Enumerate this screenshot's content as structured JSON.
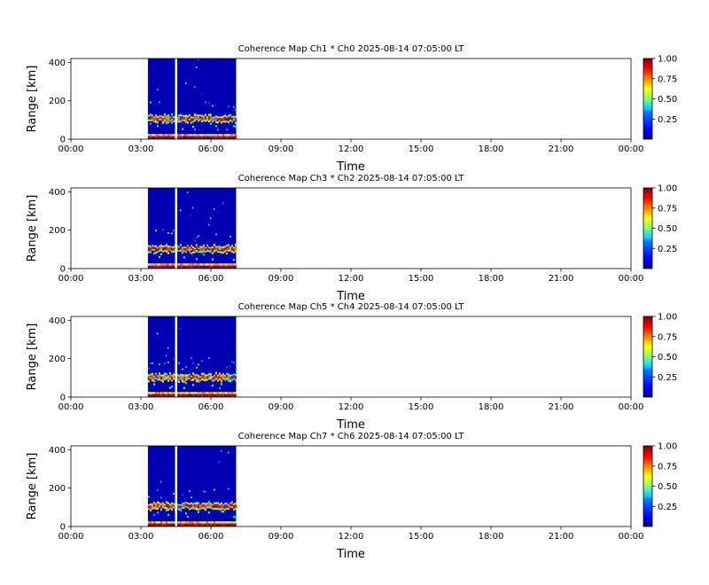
{
  "chart_data": [
    {
      "type": "heatmap",
      "title": "Coherence Map Ch1 * Ch0 2025-08-14 07:05:00 LT",
      "xlabel": "Time",
      "ylabel": "Range [km]",
      "x_ticks": [
        "00:00",
        "03:00",
        "06:00",
        "09:00",
        "12:00",
        "15:00",
        "18:00",
        "21:00",
        "00:00"
      ],
      "y_ticks": [
        "0",
        "200",
        "400"
      ],
      "xlim_hours": [
        0,
        24
      ],
      "ylim": [
        0,
        420
      ],
      "data_span_hours": [
        3.3,
        7.08
      ],
      "gap_hour": 4.5,
      "colorbar_ticks": [
        "0.25",
        "0.50",
        "0.75",
        "1.00"
      ],
      "colorbar_range": [
        0,
        1
      ],
      "colormap": "jet",
      "background_value": 0.05,
      "high_coherence_bands_km": [
        [
          95,
          120
        ],
        [
          5,
          15
        ]
      ]
    },
    {
      "type": "heatmap",
      "title": "Coherence Map Ch3 * Ch2 2025-08-14 07:05:00 LT",
      "xlabel": "Time",
      "ylabel": "Range [km]",
      "x_ticks": [
        "00:00",
        "03:00",
        "06:00",
        "09:00",
        "12:00",
        "15:00",
        "18:00",
        "21:00",
        "00:00"
      ],
      "y_ticks": [
        "0",
        "200",
        "400"
      ],
      "xlim_hours": [
        0,
        24
      ],
      "ylim": [
        0,
        420
      ],
      "data_span_hours": [
        3.3,
        7.08
      ],
      "gap_hour": 4.5,
      "colorbar_ticks": [
        "0.25",
        "0.50",
        "0.75",
        "1.00"
      ],
      "colorbar_range": [
        0,
        1
      ],
      "colormap": "jet",
      "background_value": 0.05,
      "high_coherence_bands_km": [
        [
          90,
          115
        ],
        [
          5,
          15
        ]
      ]
    },
    {
      "type": "heatmap",
      "title": "Coherence Map Ch5 * Ch4 2025-08-14 07:05:00 LT",
      "xlabel": "Time",
      "ylabel": "Range [km]",
      "x_ticks": [
        "00:00",
        "03:00",
        "06:00",
        "09:00",
        "12:00",
        "15:00",
        "18:00",
        "21:00",
        "00:00"
      ],
      "y_ticks": [
        "0",
        "200",
        "400"
      ],
      "xlim_hours": [
        0,
        24
      ],
      "ylim": [
        0,
        420
      ],
      "data_span_hours": [
        3.3,
        7.08
      ],
      "gap_hour": 4.5,
      "colorbar_ticks": [
        "0.25",
        "0.50",
        "0.75",
        "1.00"
      ],
      "colorbar_range": [
        0,
        1
      ],
      "colormap": "jet",
      "background_value": 0.05,
      "high_coherence_bands_km": [
        [
          90,
          115
        ],
        [
          5,
          15
        ]
      ]
    },
    {
      "type": "heatmap",
      "title": "Coherence Map Ch7 * Ch6 2025-08-14 07:05:00 LT",
      "xlabel": "Time",
      "ylabel": "Range [km]",
      "x_ticks": [
        "00:00",
        "03:00",
        "06:00",
        "09:00",
        "12:00",
        "15:00",
        "18:00",
        "21:00",
        "00:00"
      ],
      "y_ticks": [
        "0",
        "200",
        "400"
      ],
      "xlim_hours": [
        0,
        24
      ],
      "ylim": [
        0,
        420
      ],
      "data_span_hours": [
        3.3,
        7.08
      ],
      "gap_hour": 4.5,
      "colorbar_ticks": [
        "0.25",
        "0.50",
        "0.75",
        "1.00"
      ],
      "colorbar_range": [
        0,
        1
      ],
      "colormap": "jet",
      "background_value": 0.05,
      "high_coherence_bands_km": [
        [
          95,
          120
        ],
        [
          5,
          15
        ]
      ]
    }
  ]
}
